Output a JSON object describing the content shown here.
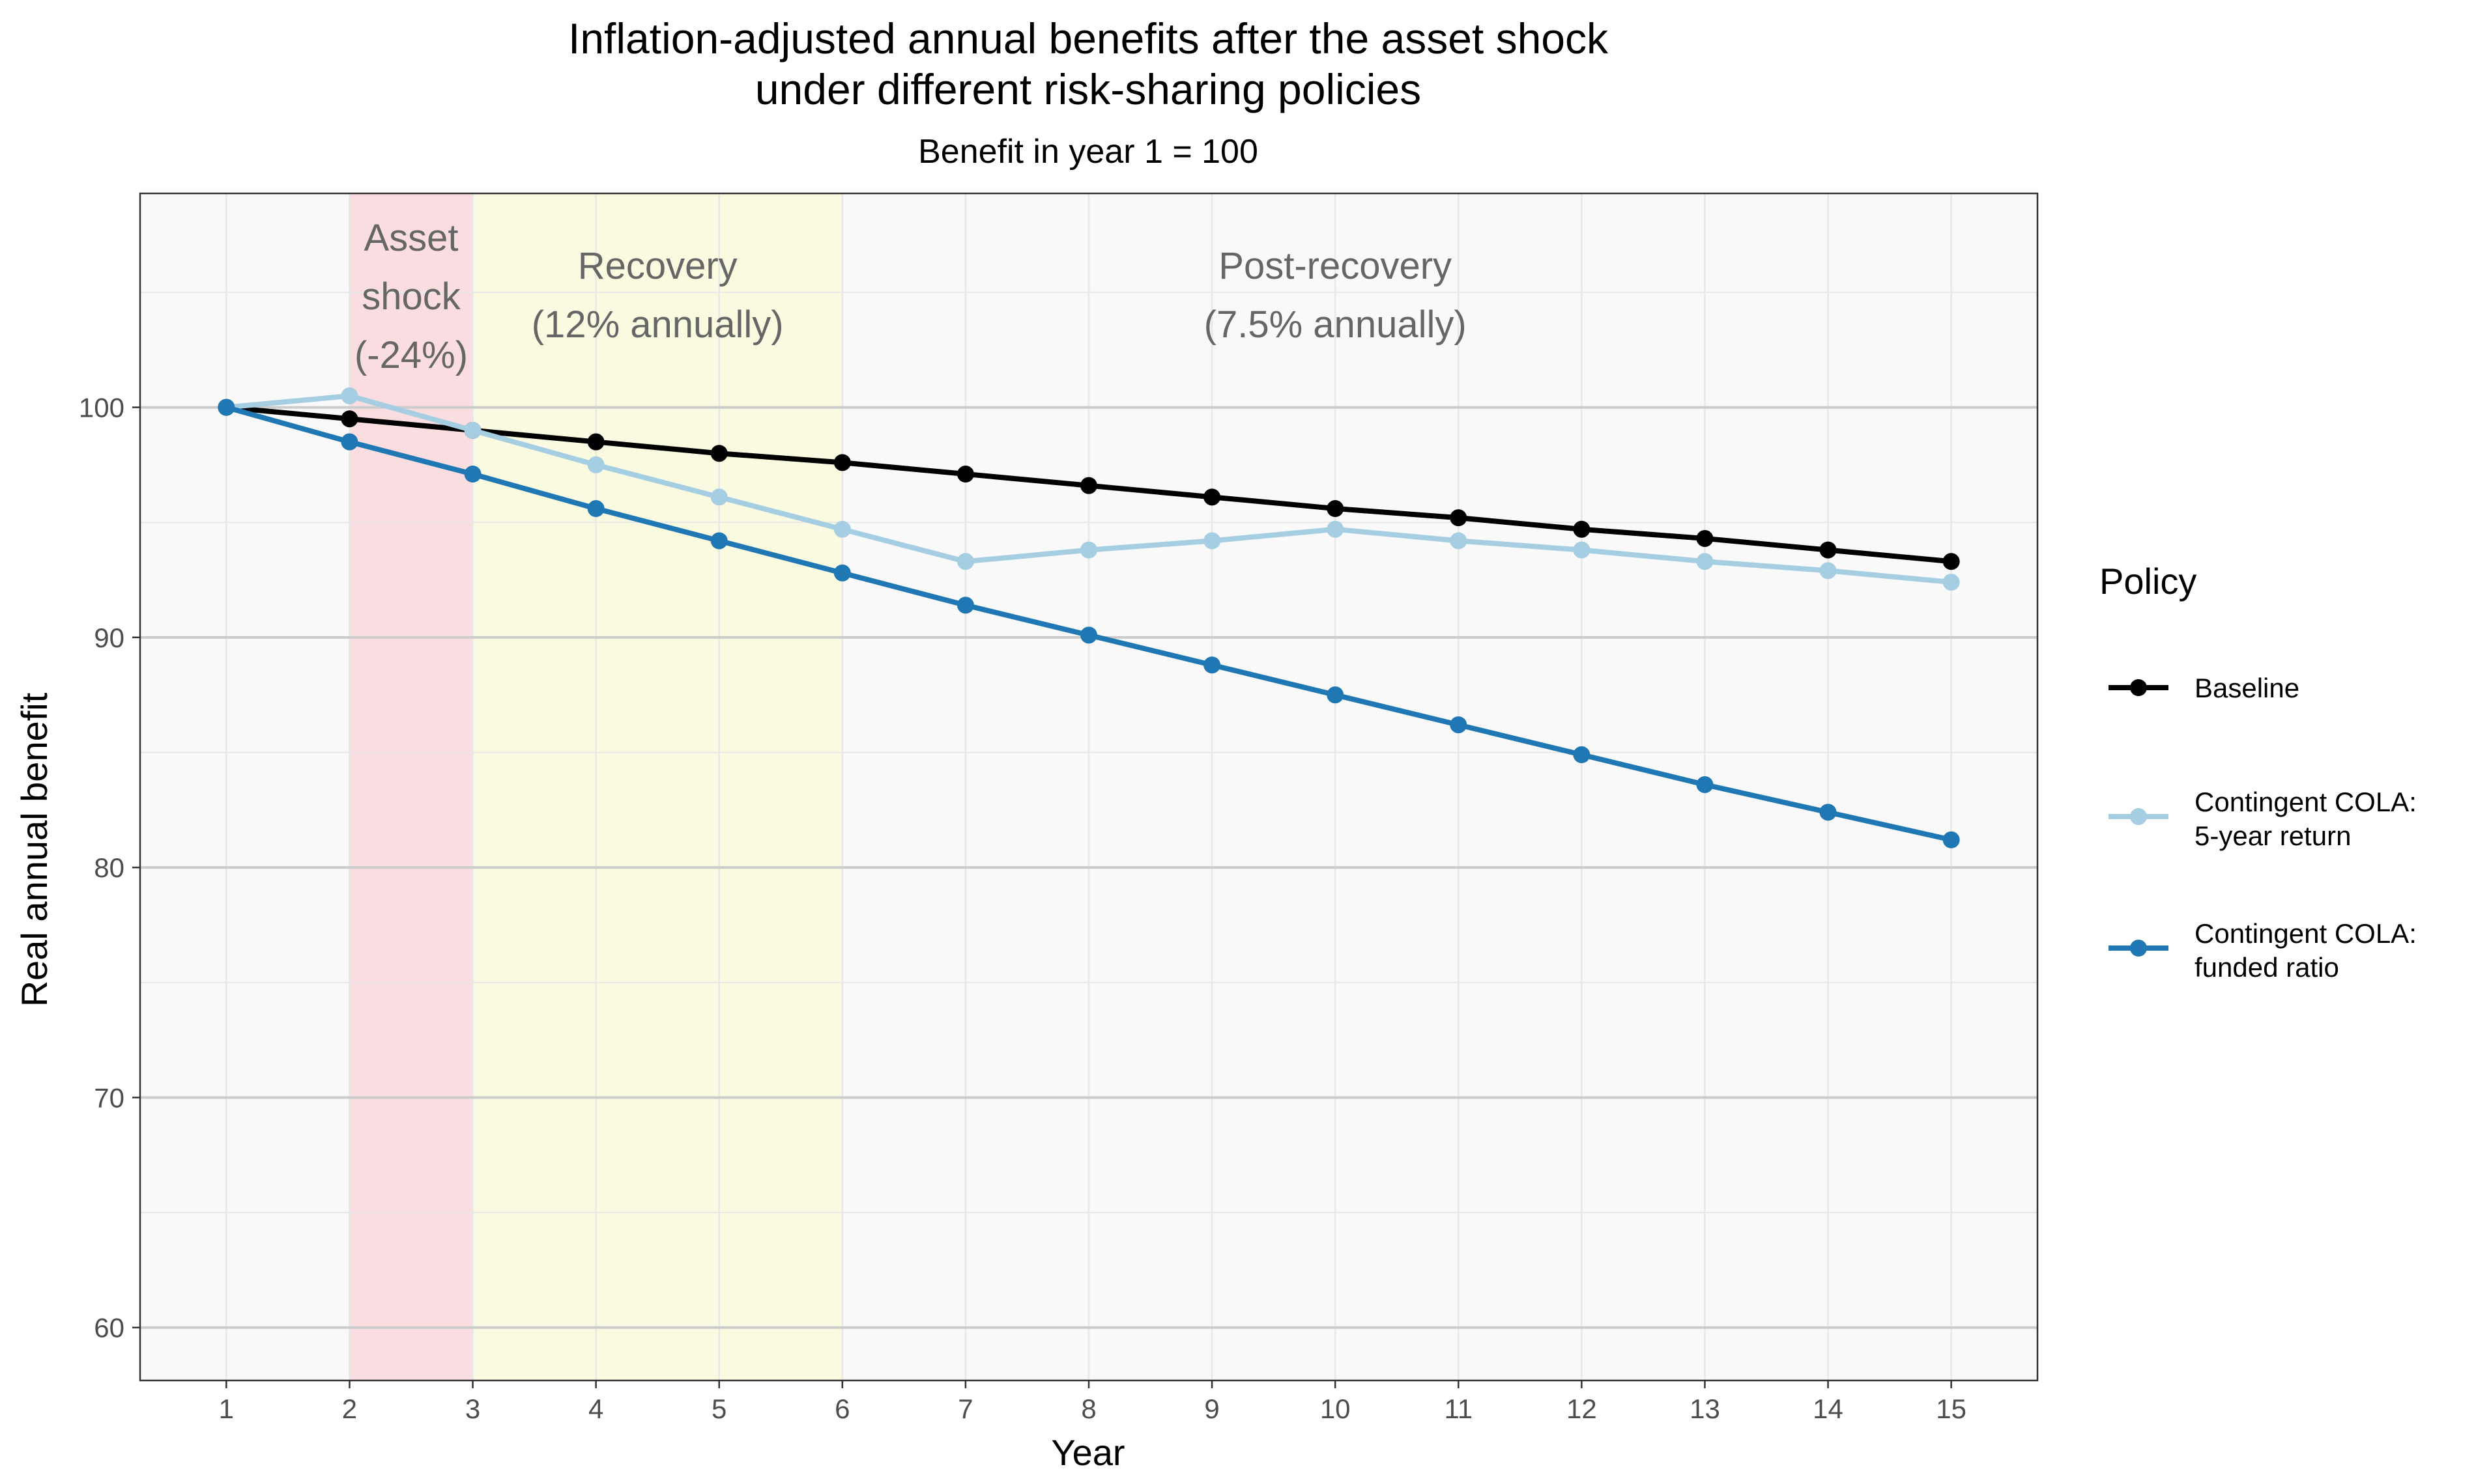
{
  "chart_data": {
    "type": "line",
    "title_line1": "Inflation-adjusted annual benefits after the asset shock",
    "title_line2": "under different risk-sharing policies",
    "subtitle": "Benefit in year 1 = 100",
    "xlabel": "Year",
    "ylabel": "Real annual benefit",
    "x": [
      1,
      2,
      3,
      4,
      5,
      6,
      7,
      8,
      9,
      10,
      11,
      12,
      13,
      14,
      15
    ],
    "xlim": [
      0.3,
      15.7
    ],
    "ylim": [
      57.7,
      109.3
    ],
    "y_ticks": [
      60,
      70,
      80,
      90,
      100
    ],
    "grid": true,
    "legend_position": "right",
    "legend_title": "Policy",
    "series": [
      {
        "name": "Baseline",
        "color": "#000000",
        "values": [
          100.0,
          99.5,
          99.0,
          98.5,
          98.0,
          97.6,
          97.1,
          96.6,
          96.1,
          95.6,
          95.2,
          94.7,
          94.3,
          93.8,
          93.3
        ]
      },
      {
        "name": "Contingent COLA: 5-year return",
        "name_lines": [
          "Contingent COLA:",
          "5-year return"
        ],
        "color": "#a6cee3",
        "values": [
          100.0,
          100.5,
          99.0,
          97.5,
          96.1,
          94.7,
          93.3,
          93.8,
          94.2,
          94.7,
          94.2,
          93.8,
          93.3,
          92.9,
          92.4
        ]
      },
      {
        "name": "Contingent COLA: funded ratio",
        "name_lines": [
          "Contingent COLA:",
          "funded ratio"
        ],
        "color": "#1f78b4",
        "values": [
          100.0,
          98.5,
          97.1,
          95.6,
          94.2,
          92.8,
          91.4,
          90.1,
          88.8,
          87.5,
          86.2,
          84.9,
          83.6,
          82.4,
          81.2
        ]
      }
    ],
    "regions": [
      {
        "x_start": 2,
        "x_end": 3,
        "color": "#fadde1",
        "label_lines": [
          "Asset",
          "shock",
          "(-24%)"
        ]
      },
      {
        "x_start": 3,
        "x_end": 6,
        "color": "#fafae1",
        "label_lines": [
          "Recovery",
          "(12% annually)"
        ]
      },
      {
        "x_start": 6,
        "x_end": 15.7,
        "color": "#f9f9f9",
        "label_lines": [
          "Post-recovery",
          "(7.5% annually)"
        ]
      }
    ],
    "panel_background": "#f9f9f9",
    "grid_major_color": "#cccccc",
    "grid_minor_color": "#e8e8e8"
  }
}
